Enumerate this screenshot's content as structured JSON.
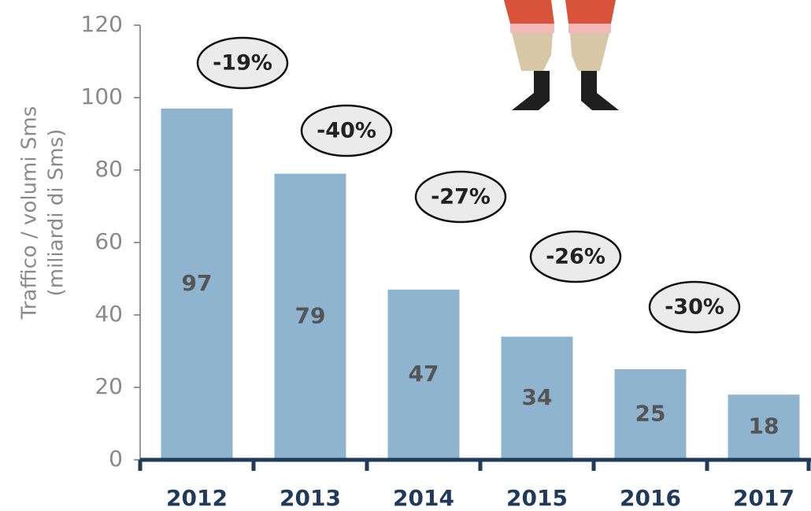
{
  "chart_data": {
    "type": "bar",
    "ylabel": [
      "Traffico / volumi Sms",
      "(miliardi di Sms)"
    ],
    "categories": [
      "2012",
      "2013",
      "2014",
      "2015",
      "2016",
      "2017"
    ],
    "values": [
      97,
      79,
      47,
      34,
      25,
      18
    ],
    "color": "#8fb4cf",
    "ylim": [
      0,
      120
    ],
    "yticks": [
      0,
      20,
      40,
      60,
      80,
      100,
      120
    ],
    "grid": false,
    "annotations": [
      "-19%",
      "-40%",
      "-27%",
      "-26%",
      "-30%"
    ]
  }
}
